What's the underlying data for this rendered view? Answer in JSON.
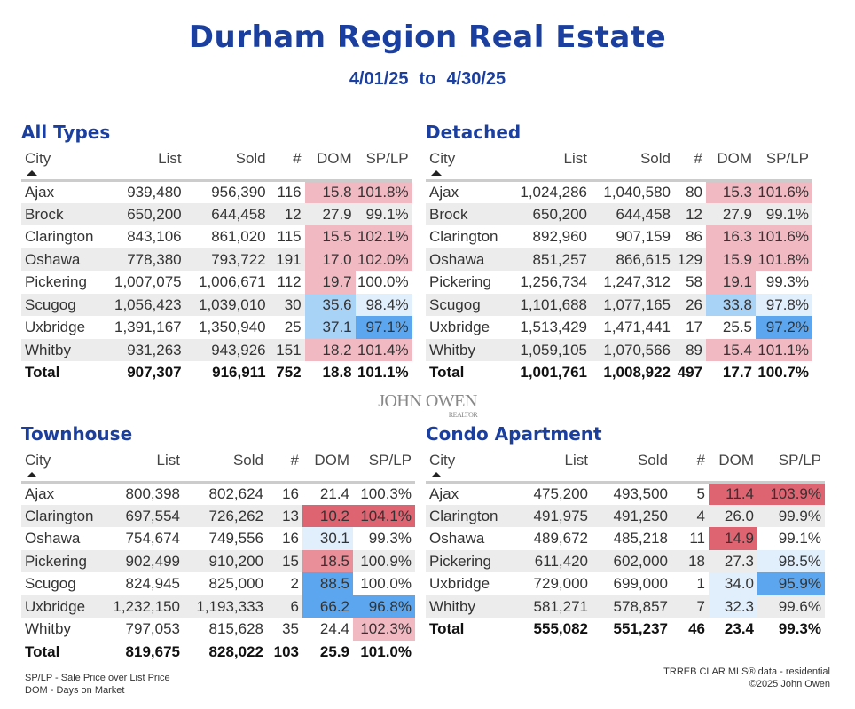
{
  "header": {
    "title": "Durham Region Real Estate",
    "date_from": "4/01/25",
    "date_sep": "to",
    "date_to": "4/30/25"
  },
  "logo": {
    "name": "JOHN OWEN",
    "sub": "REALTOR"
  },
  "columns": [
    "City",
    "List",
    "Sold",
    "#",
    "DOM",
    "SP/LP"
  ],
  "colors": {
    "r1": "#f1b9c2",
    "r2": "#e98f9a",
    "r3": "#df6472",
    "b1": "#e1eefc",
    "b2": "#a9d2f7",
    "b3": "#5ba6ee",
    "title": "#1a3f9e"
  },
  "tables": [
    {
      "title": "All Types",
      "rows": [
        [
          "Ajax",
          "939,480",
          "956,390",
          "116",
          "15.8",
          "101.8%",
          "r1",
          "r1"
        ],
        [
          "Brock",
          "650,200",
          "644,458",
          "12",
          "27.9",
          "99.1%",
          "",
          ""
        ],
        [
          "Clarington",
          "843,106",
          "861,020",
          "115",
          "15.5",
          "102.1%",
          "r1",
          "r1"
        ],
        [
          "Oshawa",
          "778,380",
          "793,722",
          "191",
          "17.0",
          "102.0%",
          "r1",
          "r1"
        ],
        [
          "Pickering",
          "1,007,075",
          "1,006,671",
          "112",
          "19.7",
          "100.0%",
          "r1",
          ""
        ],
        [
          "Scugog",
          "1,056,423",
          "1,039,010",
          "30",
          "35.6",
          "98.4%",
          "b2",
          "b1"
        ],
        [
          "Uxbridge",
          "1,391,167",
          "1,350,940",
          "25",
          "37.1",
          "97.1%",
          "b2",
          "b3"
        ],
        [
          "Whitby",
          "931,263",
          "943,926",
          "151",
          "18.2",
          "101.4%",
          "r1",
          "r1"
        ]
      ],
      "total": [
        "Total",
        "907,307",
        "916,911",
        "752",
        "18.8",
        "101.1%"
      ]
    },
    {
      "title": "Detached",
      "rows": [
        [
          "Ajax",
          "1,024,286",
          "1,040,580",
          "80",
          "15.3",
          "101.6%",
          "r1",
          "r1"
        ],
        [
          "Brock",
          "650,200",
          "644,458",
          "12",
          "27.9",
          "99.1%",
          "",
          ""
        ],
        [
          "Clarington",
          "892,960",
          "907,159",
          "86",
          "16.3",
          "101.6%",
          "r1",
          "r1"
        ],
        [
          "Oshawa",
          "851,257",
          "866,615",
          "129",
          "15.9",
          "101.8%",
          "r1",
          "r1"
        ],
        [
          "Pickering",
          "1,256,734",
          "1,247,312",
          "58",
          "19.1",
          "99.3%",
          "r1",
          ""
        ],
        [
          "Scugog",
          "1,101,688",
          "1,077,165",
          "26",
          "33.8",
          "97.8%",
          "b2",
          "b1"
        ],
        [
          "Uxbridge",
          "1,513,429",
          "1,471,441",
          "17",
          "25.5",
          "97.2%",
          "",
          "b3"
        ],
        [
          "Whitby",
          "1,059,105",
          "1,070,566",
          "89",
          "15.4",
          "101.1%",
          "r1",
          "r1"
        ]
      ],
      "total": [
        "Total",
        "1,001,761",
        "1,008,922",
        "497",
        "17.7",
        "100.7%"
      ]
    },
    {
      "title": "Townhouse",
      "rows": [
        [
          "Ajax",
          "800,398",
          "802,624",
          "16",
          "21.4",
          "100.3%",
          "",
          ""
        ],
        [
          "Clarington",
          "697,554",
          "726,262",
          "13",
          "10.2",
          "104.1%",
          "r3",
          "r3"
        ],
        [
          "Oshawa",
          "754,674",
          "749,556",
          "16",
          "30.1",
          "99.3%",
          "b1",
          ""
        ],
        [
          "Pickering",
          "902,499",
          "910,200",
          "15",
          "18.5",
          "100.9%",
          "r2",
          ""
        ],
        [
          "Scugog",
          "824,945",
          "825,000",
          "2",
          "88.5",
          "100.0%",
          "b3",
          ""
        ],
        [
          "Uxbridge",
          "1,232,150",
          "1,193,333",
          "6",
          "66.2",
          "96.8%",
          "b3",
          "b3"
        ],
        [
          "Whitby",
          "797,053",
          "815,628",
          "35",
          "24.4",
          "102.3%",
          "",
          "r1"
        ]
      ],
      "total": [
        "Total",
        "819,675",
        "828,022",
        "103",
        "25.9",
        "101.0%"
      ]
    },
    {
      "title": "Condo Apartment",
      "rows": [
        [
          "Ajax",
          "475,200",
          "493,500",
          "5",
          "11.4",
          "103.9%",
          "r3",
          "r3"
        ],
        [
          "Clarington",
          "491,975",
          "491,250",
          "4",
          "26.0",
          "99.9%",
          "",
          ""
        ],
        [
          "Oshawa",
          "489,672",
          "485,218",
          "11",
          "14.9",
          "99.1%",
          "r3",
          ""
        ],
        [
          "Pickering",
          "611,420",
          "602,000",
          "18",
          "27.3",
          "98.5%",
          "",
          "b1"
        ],
        [
          "Uxbridge",
          "729,000",
          "699,000",
          "1",
          "34.0",
          "95.9%",
          "b1",
          "b3"
        ],
        [
          "Whitby",
          "581,271",
          "578,857",
          "7",
          "32.3",
          "99.6%",
          "b1",
          ""
        ]
      ],
      "total": [
        "Total",
        "555,082",
        "551,237",
        "46",
        "23.4",
        "99.3%"
      ]
    }
  ],
  "footer": {
    "legend1": "SP/LP - Sale Price over List Price",
    "legend2": "DOM - Days on Market",
    "source": "TRREB CLAR MLS® data - residential",
    "copyright": "©2025 John Owen"
  }
}
